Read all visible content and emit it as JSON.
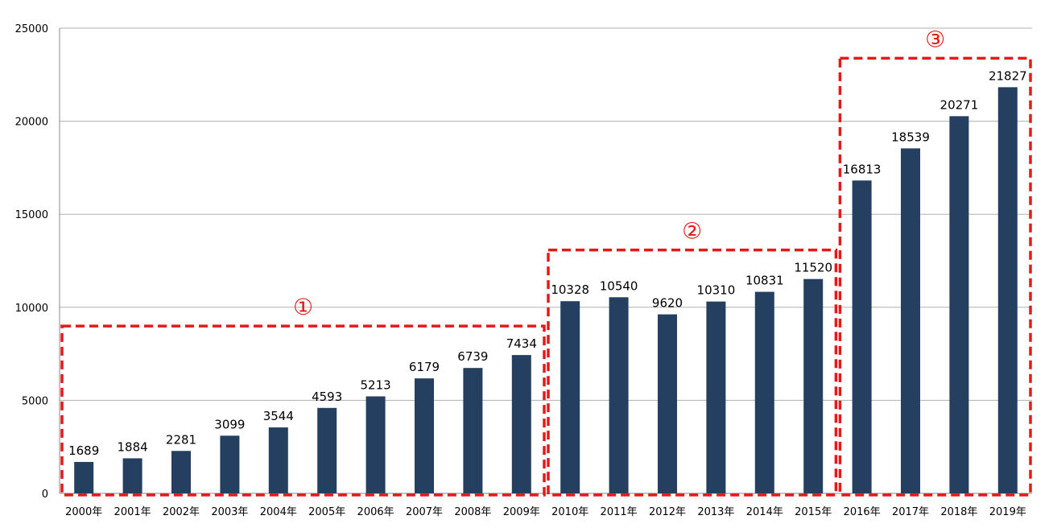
{
  "chart_data": {
    "type": "bar",
    "title": "",
    "xlabel": "",
    "ylabel": "",
    "ylim": [
      0,
      25000
    ],
    "yticks": [
      "0",
      "5000",
      "10000",
      "15000",
      "20000",
      "25000"
    ],
    "grid": true,
    "categories": [
      "2000年",
      "2001年",
      "2002年",
      "2003年",
      "2004年",
      "2005年",
      "2006年",
      "2007年",
      "2008年",
      "2009年",
      "2010年",
      "2011年",
      "2012年",
      "2013年",
      "2014年",
      "2015年",
      "2016年",
      "2017年",
      "2018年",
      "2019年"
    ],
    "values": [
      1689,
      1884,
      2281,
      3099,
      3544,
      4593,
      5213,
      6179,
      6739,
      7434,
      10328,
      10540,
      9620,
      10310,
      10831,
      11520,
      16813,
      18539,
      20271,
      21827
    ],
    "bar_color": "#243f60",
    "annotations": [
      {
        "label": "①",
        "from": "2000年",
        "to": "2009年",
        "color": "#e41a1a"
      },
      {
        "label": "②",
        "from": "2010年",
        "to": "2015年",
        "color": "#e41a1a"
      },
      {
        "label": "③",
        "from": "2016年",
        "to": "2019年",
        "color": "#e41a1a"
      }
    ]
  }
}
